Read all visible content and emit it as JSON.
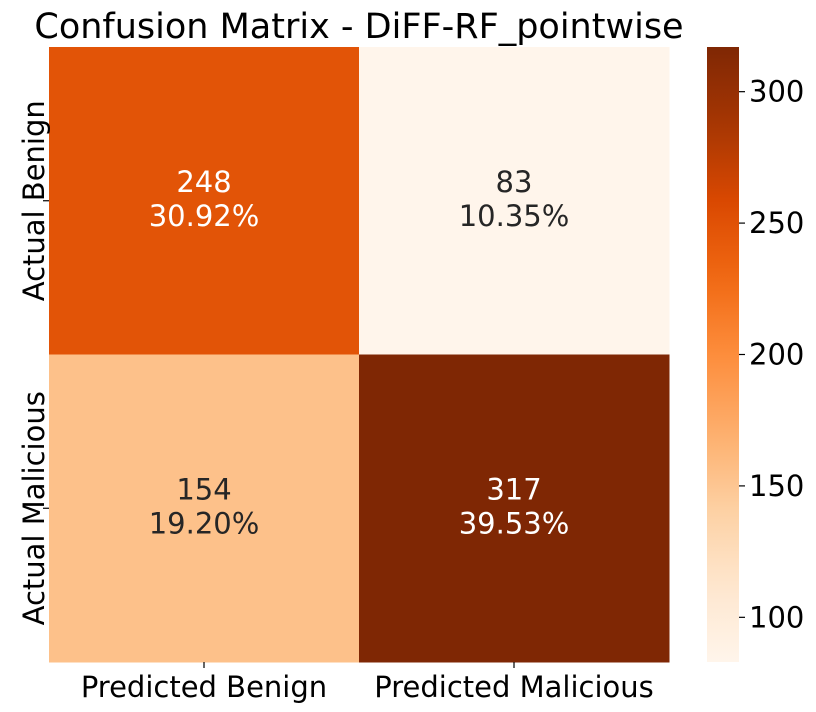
{
  "chart_data": {
    "type": "heatmap",
    "title": "Confusion Matrix - DiFF-RF_pointwise",
    "xlabel": "",
    "ylabel": "",
    "x_categories": [
      "Predicted Benign",
      "Predicted Malicious"
    ],
    "y_categories": [
      "Actual Benign",
      "Actual Malicious"
    ],
    "values": [
      [
        248,
        83
      ],
      [
        154,
        317
      ]
    ],
    "percent_labels": [
      [
        "30.92%",
        "10.35%"
      ],
      [
        "19.20%",
        "39.53%"
      ]
    ],
    "colormap": "Oranges",
    "color_range": [
      83,
      317
    ],
    "colorbar_ticks": [
      100,
      150,
      200,
      250,
      300
    ],
    "grid": false
  }
}
